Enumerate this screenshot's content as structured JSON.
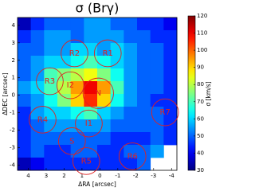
{
  "chart_data": {
    "type": "heatmap",
    "title": "σ (Brγ)",
    "x_label": "ΔRA [arcsec]",
    "y_label": "ΔDEC [arcsec]",
    "xlim": [
      4.6,
      -4.3
    ],
    "ylim": [
      -4.3,
      4.45
    ],
    "xticks": [
      4,
      3,
      2,
      1,
      0,
      -1,
      -2,
      -3,
      -4
    ],
    "yticks": [
      -4,
      -3,
      -2,
      -1,
      0,
      1,
      2,
      3,
      4
    ],
    "colormap": "jet",
    "clim": [
      30,
      120
    ],
    "cticks": [
      30,
      40,
      50,
      60,
      70,
      80,
      90,
      100,
      110,
      120
    ],
    "clabel": "σ [km/s]",
    "z": [
      [
        35,
        45,
        50,
        50,
        50,
        55,
        55,
        50,
        50,
        45,
        45,
        40
      ],
      [
        45,
        50,
        55,
        55,
        50,
        55,
        55,
        55,
        50,
        50,
        45,
        45
      ],
      [
        50,
        50,
        55,
        55,
        60,
        60,
        55,
        60,
        55,
        50,
        50,
        45
      ],
      [
        50,
        55,
        60,
        60,
        65,
        70,
        65,
        60,
        55,
        50,
        50,
        45
      ],
      [
        50,
        55,
        70,
        75,
        80,
        85,
        75,
        65,
        55,
        50,
        50,
        45
      ],
      [
        55,
        60,
        70,
        80,
        95,
        110,
        95,
        70,
        55,
        50,
        50,
        45
      ],
      [
        50,
        55,
        65,
        75,
        90,
        105,
        90,
        65,
        55,
        50,
        45,
        45
      ],
      [
        45,
        55,
        60,
        60,
        65,
        70,
        60,
        55,
        50,
        50,
        50,
        45
      ],
      [
        45,
        50,
        55,
        55,
        55,
        55,
        55,
        50,
        50,
        50,
        50,
        45
      ],
      [
        45,
        50,
        50,
        50,
        50,
        50,
        50,
        45,
        45,
        45,
        50,
        45
      ],
      [
        45,
        50,
        45,
        45,
        50,
        50,
        45,
        45,
        50,
        50,
        55,
        null
      ],
      [
        35,
        40,
        45,
        45,
        45,
        45,
        45,
        45,
        45,
        50,
        null,
        null
      ]
    ],
    "region_color": "#e02020",
    "regions": [
      {
        "label": "R2",
        "x": 1.42,
        "y": 2.4,
        "r": 0.75
      },
      {
        "label": "R1",
        "x": -0.44,
        "y": 2.4,
        "r": 0.75
      },
      {
        "label": "R3",
        "x": 2.8,
        "y": 0.8,
        "r": 0.75
      },
      {
        "label": "I2",
        "x": 1.65,
        "y": 0.57,
        "r": 0.75
      },
      {
        "label": "N",
        "x": 0.09,
        "y": 0.11,
        "r": 0.85
      },
      {
        "label": "R4",
        "x": 3.2,
        "y": -1.4,
        "r": 0.75
      },
      {
        "label": "I1",
        "x": 0.62,
        "y": -1.62,
        "r": 0.75
      },
      {
        "label": "R7",
        "x": -3.64,
        "y": -0.98,
        "r": 0.75
      },
      {
        "label": "S",
        "x": 1.56,
        "y": -2.63,
        "r": 0.75
      },
      {
        "label": "R5",
        "x": 0.76,
        "y": -3.77,
        "r": 0.75
      },
      {
        "label": "R6",
        "x": -1.82,
        "y": -3.5,
        "r": 0.75
      }
    ]
  }
}
